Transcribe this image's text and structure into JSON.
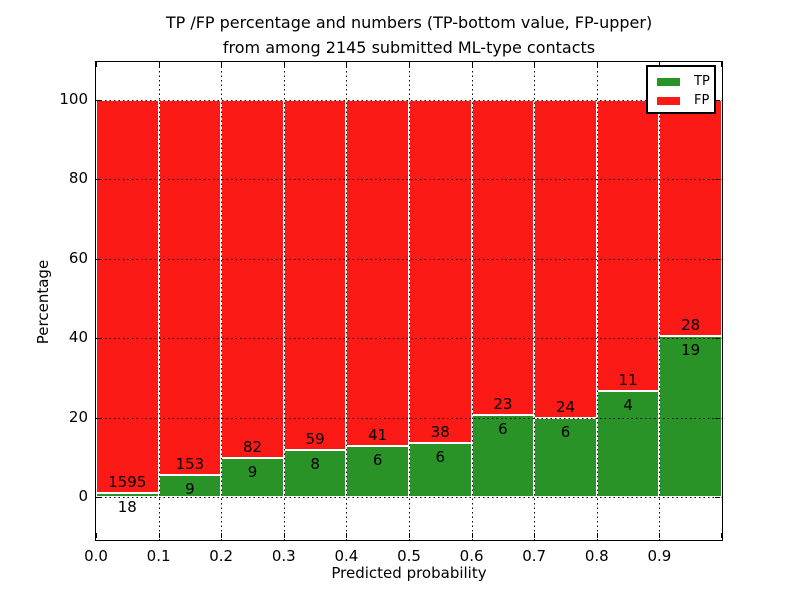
{
  "header": {
    "title_line1": "TP /FP percentage and numbers (TP-bottom value, FP-upper)",
    "title_line2": "from among 2145 submitted ML-type contacts"
  },
  "chart_data": {
    "type": "bar",
    "stacked": true,
    "normalized_to": 100,
    "title": "TP /FP percentage and numbers (TP-bottom value, FP-upper) from among 2145 submitted ML-type contacts",
    "xlabel": "Predicted probability",
    "ylabel": "Percentage",
    "total_contacts": 2145,
    "xlim": [
      0.0,
      1.0
    ],
    "ylim": [
      -10.8,
      109.6
    ],
    "grid": "dotted, both axes, drawn above bars",
    "x_tick_labels": [
      "0.0",
      "0.1",
      "0.2",
      "0.3",
      "0.4",
      "0.5",
      "0.6",
      "0.7",
      "0.8",
      "0.9"
    ],
    "y_tick_values": [
      0,
      20,
      40,
      60,
      80,
      100
    ],
    "bins": [
      {
        "range": "0.0-0.1",
        "tp": 18,
        "fp": 1595,
        "tp_pct": 1.12
      },
      {
        "range": "0.1-0.2",
        "tp": 9,
        "fp": 153,
        "tp_pct": 5.56
      },
      {
        "range": "0.2-0.3",
        "tp": 9,
        "fp": 82,
        "tp_pct": 9.89
      },
      {
        "range": "0.3-0.4",
        "tp": 8,
        "fp": 59,
        "tp_pct": 11.94
      },
      {
        "range": "0.4-0.5",
        "tp": 6,
        "fp": 41,
        "tp_pct": 12.77
      },
      {
        "range": "0.5-0.6",
        "tp": 6,
        "fp": 38,
        "tp_pct": 13.64
      },
      {
        "range": "0.6-0.7",
        "tp": 6,
        "fp": 23,
        "tp_pct": 20.69
      },
      {
        "range": "0.7-0.8",
        "tp": 6,
        "fp": 24,
        "tp_pct": 20.0
      },
      {
        "range": "0.8-0.9",
        "tp": 4,
        "fp": 11,
        "tp_pct": 26.67
      },
      {
        "range": "0.9-1.0",
        "tp": 19,
        "fp": 28,
        "tp_pct": 40.43
      }
    ],
    "colors": {
      "tp": "#2a9328",
      "fp": "#fb1a15",
      "bar_edge": "#ffffff",
      "grid": "#000000"
    },
    "legend": {
      "position": "upper-right",
      "entries": [
        {
          "label": "TP",
          "color": "#2a9328"
        },
        {
          "label": "FP",
          "color": "#fb1a15"
        }
      ]
    }
  }
}
